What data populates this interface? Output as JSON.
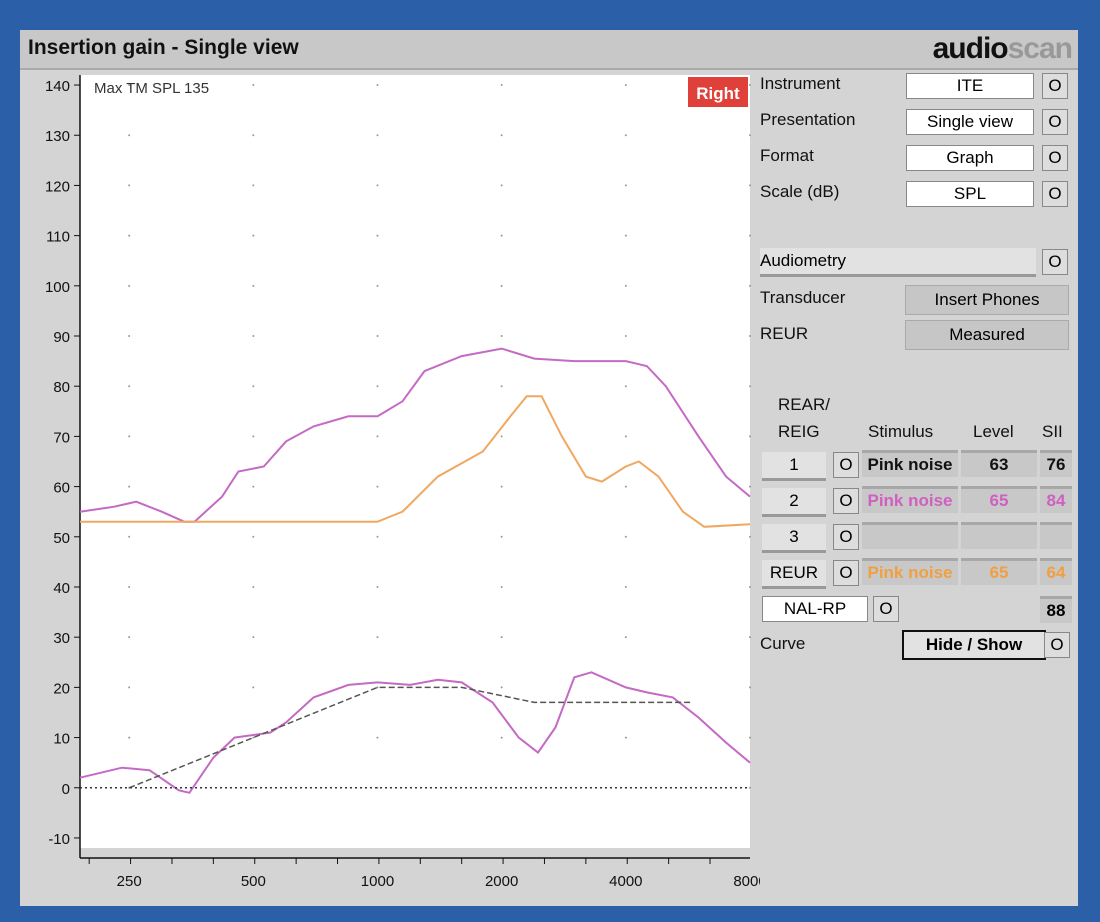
{
  "header": {
    "title": "Insertion gain - Single view",
    "logo_a": "audio",
    "logo_b": "scan"
  },
  "chart_data": {
    "type": "line",
    "annotation": "Max TM SPL 135",
    "ear_badge": "Right",
    "x_scale": "log",
    "xlim": [
      190,
      8000
    ],
    "ylim": [
      -12,
      142
    ],
    "x_ticks": [
      250,
      500,
      1000,
      2000,
      4000,
      8000
    ],
    "y_ticks": [
      140,
      130,
      120,
      110,
      100,
      90,
      80,
      70,
      60,
      50,
      40,
      30,
      20,
      10,
      0,
      -10
    ],
    "grid": "dotted",
    "series": [
      {
        "color": "#c46ac4",
        "style": "solid",
        "points": [
          [
            190,
            55
          ],
          [
            230,
            56
          ],
          [
            260,
            57
          ],
          [
            300,
            55
          ],
          [
            340,
            53
          ],
          [
            360,
            53
          ],
          [
            420,
            58
          ],
          [
            460,
            63
          ],
          [
            530,
            64
          ],
          [
            600,
            69
          ],
          [
            700,
            72
          ],
          [
            850,
            74
          ],
          [
            1000,
            74
          ],
          [
            1150,
            77
          ],
          [
            1300,
            83
          ],
          [
            1600,
            86
          ],
          [
            2000,
            87.5
          ],
          [
            2400,
            85.5
          ],
          [
            3000,
            85
          ],
          [
            4000,
            85
          ],
          [
            4500,
            84
          ],
          [
            5000,
            80
          ],
          [
            6000,
            70
          ],
          [
            7000,
            62
          ],
          [
            8000,
            58
          ]
        ]
      },
      {
        "color": "#f0a860",
        "style": "solid",
        "points": [
          [
            190,
            53
          ],
          [
            400,
            53
          ],
          [
            700,
            53
          ],
          [
            1000,
            53
          ],
          [
            1150,
            55
          ],
          [
            1400,
            62
          ],
          [
            1800,
            67
          ],
          [
            2100,
            74
          ],
          [
            2300,
            78
          ],
          [
            2500,
            78
          ],
          [
            2800,
            70
          ],
          [
            3200,
            62
          ],
          [
            3500,
            61
          ],
          [
            4000,
            64
          ],
          [
            4300,
            65
          ],
          [
            4800,
            62
          ],
          [
            5500,
            55
          ],
          [
            6200,
            52
          ],
          [
            8000,
            52.5
          ]
        ]
      },
      {
        "color": "#c46ac4",
        "style": "solid",
        "points": [
          [
            190,
            2
          ],
          [
            240,
            4
          ],
          [
            280,
            3.5
          ],
          [
            330,
            -0.5
          ],
          [
            350,
            -1
          ],
          [
            400,
            6
          ],
          [
            450,
            10
          ],
          [
            550,
            11
          ],
          [
            600,
            13
          ],
          [
            700,
            18
          ],
          [
            850,
            20.5
          ],
          [
            1000,
            21
          ],
          [
            1200,
            20.5
          ],
          [
            1400,
            21.5
          ],
          [
            1600,
            21
          ],
          [
            1900,
            17
          ],
          [
            2200,
            10
          ],
          [
            2450,
            7
          ],
          [
            2700,
            12
          ],
          [
            3000,
            22
          ],
          [
            3300,
            23
          ],
          [
            4000,
            20
          ],
          [
            4500,
            19
          ],
          [
            5200,
            18
          ],
          [
            6000,
            14
          ],
          [
            7000,
            9
          ],
          [
            8000,
            5
          ]
        ]
      },
      {
        "color": "#555555",
        "style": "dashed",
        "points": [
          [
            250,
            0
          ],
          [
            1000,
            20
          ],
          [
            1600,
            20
          ],
          [
            2400,
            17
          ],
          [
            5800,
            17
          ]
        ]
      },
      {
        "color": "#333333",
        "style": "dotted",
        "points": [
          [
            190,
            0
          ],
          [
            8000,
            0
          ]
        ]
      }
    ]
  },
  "settings": [
    {
      "label": "Instrument",
      "value": "ITE"
    },
    {
      "label": "Presentation",
      "value": "Single view"
    },
    {
      "label": "Format",
      "value": "Graph"
    },
    {
      "label": "Scale (dB)",
      "value": "SPL"
    }
  ],
  "audiometry": {
    "label": "Audiometry",
    "transducer_label": "Transducer",
    "transducer": "Insert Phones",
    "reur_label": "REUR",
    "reur": "Measured"
  },
  "table": {
    "h1a": "REAR/",
    "h1b": "REIG",
    "h2": "Stimulus",
    "h3": "Level",
    "h4": "SII",
    "rows": [
      {
        "btn": "1",
        "stim": "Pink noise",
        "level": "63",
        "sii": "76",
        "color": "#111111"
      },
      {
        "btn": "2",
        "stim": "Pink noise",
        "level": "65",
        "sii": "84",
        "color": "#d060c0"
      },
      {
        "btn": "3",
        "stim": "",
        "level": "",
        "sii": "",
        "color": "#111111"
      },
      {
        "btn": "REUR",
        "stim": "Pink noise",
        "level": "65",
        "sii": "64",
        "color": "#f0a040"
      }
    ],
    "target": "NAL-RP",
    "target_sii": "88"
  },
  "curve": {
    "label": "Curve",
    "button": "Hide / Show"
  }
}
